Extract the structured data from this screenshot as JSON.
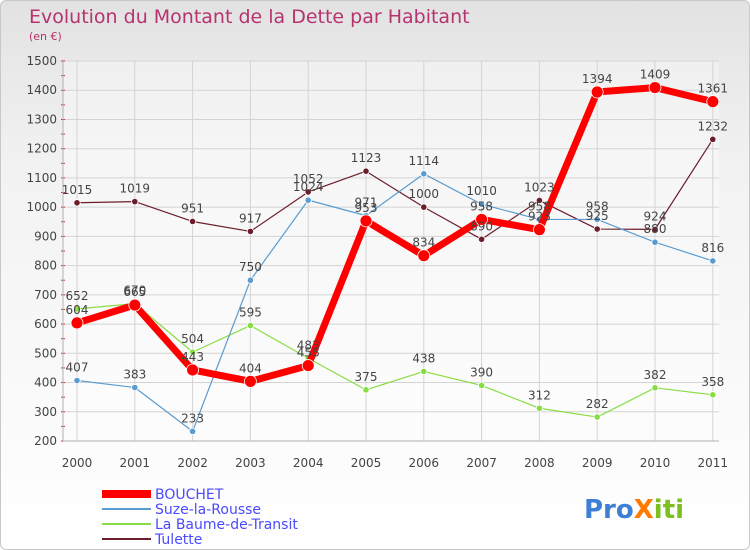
{
  "title": "Evolution du Montant de la Dette par Habitant",
  "subtitle": "(en €)",
  "brand": "ProXiti",
  "chart_data": {
    "type": "line",
    "title": "Evolution du Montant de la Dette par Habitant",
    "subtitle": "(en €)",
    "categories": [
      "2000",
      "2001",
      "2002",
      "2003",
      "2004",
      "2005",
      "2006",
      "2007",
      "2008",
      "2009",
      "2010",
      "2011"
    ],
    "ylim": [
      200,
      1500
    ],
    "yticks": [
      200,
      300,
      400,
      500,
      600,
      700,
      800,
      900,
      1000,
      1100,
      1200,
      1300,
      1400,
      1500
    ],
    "grid": true,
    "legend_position": "bottom-left",
    "series": [
      {
        "name": "Tulette",
        "color": "#6b1e2a",
        "width": 1.2,
        "values": [
          1015,
          1019,
          951,
          917,
          1052,
          1123,
          1000,
          890,
          1023,
          925,
          924,
          1232
        ]
      },
      {
        "name": "La Baume-de-Transit",
        "color": "#88dd44",
        "width": 1.2,
        "values": [
          652,
          670,
          504,
          595,
          483,
          375,
          438,
          390,
          312,
          282,
          382,
          358
        ]
      },
      {
        "name": "Suze-la-Rousse",
        "color": "#5a9cd0",
        "width": 1.2,
        "values": [
          407,
          383,
          233,
          750,
          1024,
          971,
          1114,
          1010,
          958,
          958,
          880,
          816
        ]
      },
      {
        "name": "BOUCHET",
        "color": "#ff0000",
        "width": 7,
        "values": [
          604,
          665,
          443,
          404,
          458,
          953,
          834,
          958,
          923,
          1394,
          1409,
          1361
        ]
      }
    ],
    "legend_order": [
      "BOUCHET",
      "Suze-la-Rousse",
      "La Baume-de-Transit",
      "Tulette"
    ]
  }
}
